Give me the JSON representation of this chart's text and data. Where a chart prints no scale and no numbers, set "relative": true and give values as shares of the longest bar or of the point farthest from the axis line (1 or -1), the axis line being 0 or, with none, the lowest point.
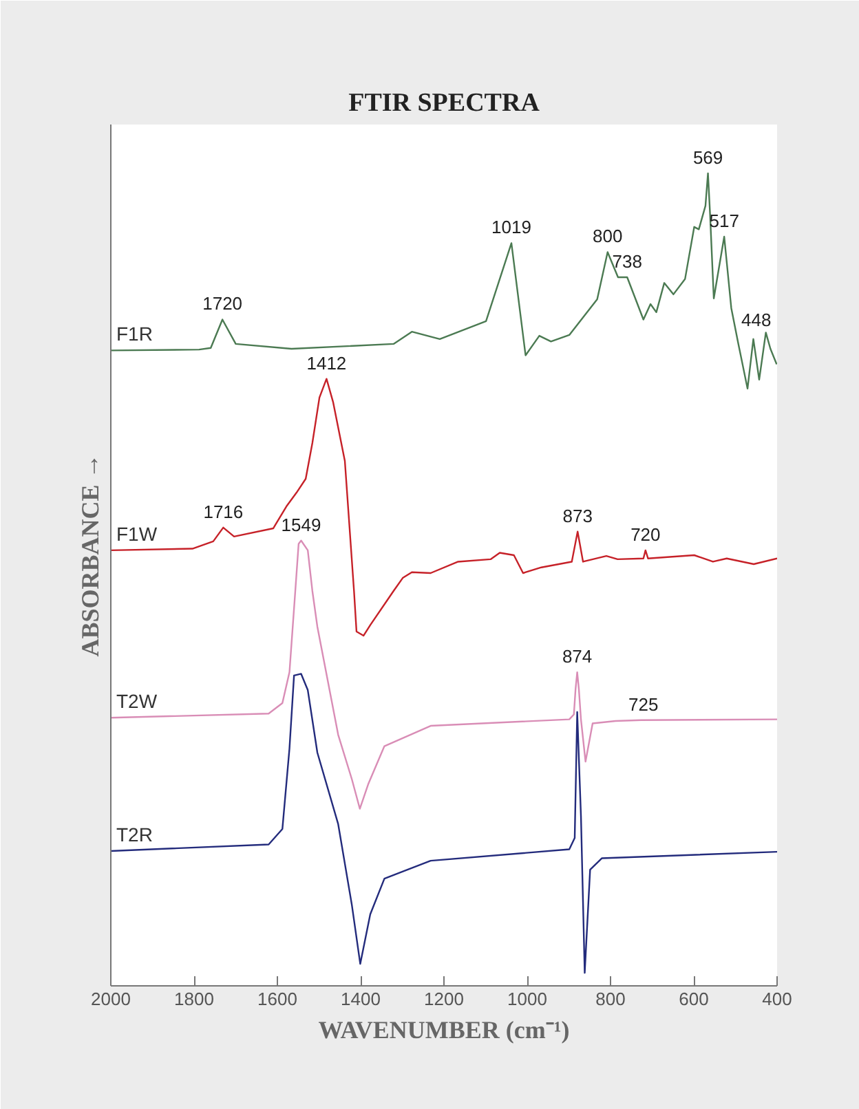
{
  "chart_data": {
    "type": "line",
    "title": "FTIR SPECTRA",
    "xlabel": "WAVENUMBER (cm⁻¹)",
    "ylabel": "ABSORBANCE →",
    "relative": true,
    "legend": false,
    "grid": false,
    "xlim": [
      2000,
      400
    ],
    "xticks": [
      2000,
      1800,
      1600,
      1400,
      1200,
      1000,
      800,
      600,
      400
    ],
    "series": [
      {
        "name": "F1R",
        "color": "#4b7a52",
        "x": [
          2000,
          1788,
          1760,
          1732,
          1700,
          1566,
          1321,
          1277,
          1210,
          1099,
          1038,
          1004,
          971,
          943,
          899,
          832,
          807,
          782,
          760,
          721,
          704,
          690,
          671,
          649,
          621,
          599,
          588,
          572,
          566,
          561,
          552,
          527,
          510,
          493,
          471,
          457,
          443,
          427,
          416,
          401
        ],
        "values": [
          0.782,
          0.783,
          0.785,
          0.82,
          0.79,
          0.784,
          0.79,
          0.805,
          0.796,
          0.818,
          0.914,
          0.776,
          0.8,
          0.793,
          0.801,
          0.845,
          0.903,
          0.872,
          0.872,
          0.82,
          0.839,
          0.829,
          0.865,
          0.851,
          0.87,
          0.934,
          0.931,
          0.96,
          1.0,
          0.95,
          0.846,
          0.922,
          0.834,
          0.79,
          0.735,
          0.796,
          0.746,
          0.804,
          0.784,
          0.765
        ]
      },
      {
        "name": "F1W",
        "color": "#c62128",
        "x": [
          2000,
          1804,
          1754,
          1730,
          1704,
          1610,
          1577,
          1554,
          1532,
          1516,
          1499,
          1482,
          1466,
          1438,
          1416,
          1410,
          1393,
          1377,
          1321,
          1299,
          1277,
          1232,
          1166,
          1088,
          1066,
          1032,
          1010,
          966,
          893,
          879,
          866,
          810,
          783,
          721,
          716,
          710,
          599,
          554,
          521,
          456,
          400
        ],
        "values": [
          0.536,
          0.538,
          0.547,
          0.564,
          0.553,
          0.563,
          0.591,
          0.607,
          0.624,
          0.668,
          0.724,
          0.747,
          0.718,
          0.646,
          0.486,
          0.436,
          0.431,
          0.444,
          0.486,
          0.502,
          0.509,
          0.508,
          0.522,
          0.525,
          0.533,
          0.53,
          0.508,
          0.515,
          0.522,
          0.559,
          0.522,
          0.529,
          0.525,
          0.526,
          0.536,
          0.526,
          0.53,
          0.522,
          0.526,
          0.519,
          0.526
        ]
      },
      {
        "name": "T2W",
        "color": "#d98db6",
        "x": [
          2000,
          1621,
          1588,
          1571,
          1557,
          1549,
          1543,
          1527,
          1516,
          1504,
          1454,
          1421,
          1402,
          1382,
          1343,
          1232,
          899,
          888,
          884,
          880,
          876,
          871,
          860,
          843,
          788,
          727,
          400
        ],
        "values": [
          0.33,
          0.335,
          0.348,
          0.386,
          0.486,
          0.544,
          0.548,
          0.536,
          0.486,
          0.442,
          0.309,
          0.254,
          0.218,
          0.248,
          0.295,
          0.32,
          0.328,
          0.334,
          0.365,
          0.386,
          0.365,
          0.328,
          0.276,
          0.323,
          0.326,
          0.327,
          0.328
        ]
      },
      {
        "name": "T2R",
        "color": "#232b7c",
        "x": [
          2000,
          1621,
          1588,
          1571,
          1560,
          1543,
          1527,
          1504,
          1454,
          1421,
          1401,
          1377,
          1343,
          1232,
          899,
          886,
          880,
          871,
          862,
          849,
          821,
          400
        ],
        "values": [
          0.166,
          0.174,
          0.193,
          0.292,
          0.382,
          0.384,
          0.364,
          0.287,
          0.199,
          0.099,
          0.027,
          0.088,
          0.132,
          0.154,
          0.168,
          0.182,
          0.337,
          0.209,
          0.016,
          0.143,
          0.157,
          0.165
        ]
      }
    ],
    "annotations": [
      {
        "text": "1720",
        "x": 1732,
        "y": 0.82
      },
      {
        "text": "1019",
        "x": 1038,
        "y": 0.914
      },
      {
        "text": "800",
        "x": 807,
        "y": 0.903
      },
      {
        "text": "738",
        "x": 760,
        "y": 0.872
      },
      {
        "text": "569",
        "x": 566,
        "y": 1.0
      },
      {
        "text": "517",
        "x": 527,
        "y": 0.922
      },
      {
        "text": "448",
        "x": 450,
        "y": 0.8
      },
      {
        "text": "1412",
        "x": 1482,
        "y": 0.747
      },
      {
        "text": "1716",
        "x": 1730,
        "y": 0.564
      },
      {
        "text": "873",
        "x": 879,
        "y": 0.559
      },
      {
        "text": "720",
        "x": 716,
        "y": 0.536
      },
      {
        "text": "1549",
        "x": 1543,
        "y": 0.548
      },
      {
        "text": "874",
        "x": 880,
        "y": 0.386
      },
      {
        "text": "725",
        "x": 721,
        "y": 0.327
      }
    ]
  }
}
